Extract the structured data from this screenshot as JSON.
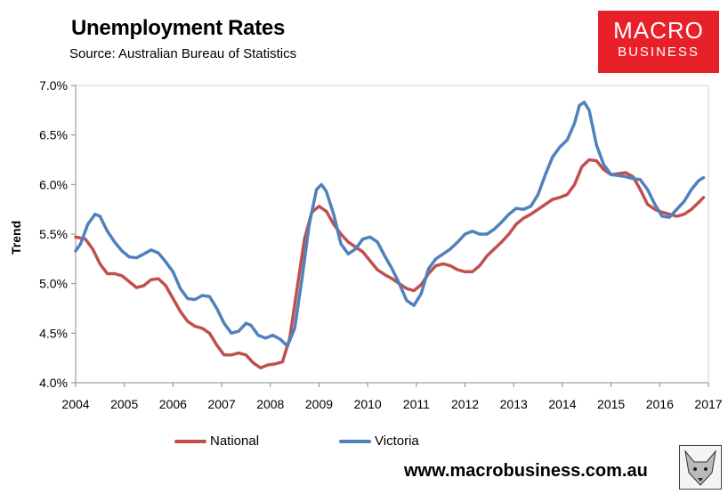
{
  "header": {
    "title": "Unemployment Rates",
    "subtitle": "Source: Australian Bureau of Statistics"
  },
  "logo": {
    "top": "MACRO",
    "bottom": "BUSINESS"
  },
  "footer": {
    "website": "www.macrobusiness.com.au"
  },
  "colors": {
    "national": "#c0504d",
    "victoria": "#4f81bd",
    "logo_bg": "#e8202a"
  },
  "chart_data": {
    "type": "line",
    "title": "Unemployment Rates",
    "ylabel": "Trend",
    "xlabel": "",
    "xlim": [
      2004,
      2017
    ],
    "ylim": [
      4.0,
      7.0
    ],
    "x_ticks": [
      "2004",
      "2005",
      "2006",
      "2007",
      "2008",
      "2009",
      "2010",
      "2011",
      "2012",
      "2013",
      "2014",
      "2015",
      "2016",
      "2017"
    ],
    "y_ticks": [
      "4.0%",
      "4.5%",
      "5.0%",
      "5.5%",
      "6.0%",
      "6.5%",
      "7.0%"
    ],
    "legend_position": "bottom",
    "series": [
      {
        "name": "National",
        "color": "#c0504d",
        "points": [
          [
            2004.0,
            5.47
          ],
          [
            2004.2,
            5.45
          ],
          [
            2004.35,
            5.35
          ],
          [
            2004.5,
            5.2
          ],
          [
            2004.65,
            5.1
          ],
          [
            2004.8,
            5.1
          ],
          [
            2004.95,
            5.08
          ],
          [
            2005.1,
            5.02
          ],
          [
            2005.25,
            4.96
          ],
          [
            2005.4,
            4.98
          ],
          [
            2005.55,
            5.04
          ],
          [
            2005.7,
            5.05
          ],
          [
            2005.85,
            4.98
          ],
          [
            2006.0,
            4.85
          ],
          [
            2006.15,
            4.72
          ],
          [
            2006.3,
            4.62
          ],
          [
            2006.45,
            4.57
          ],
          [
            2006.6,
            4.55
          ],
          [
            2006.75,
            4.5
          ],
          [
            2006.9,
            4.38
          ],
          [
            2007.05,
            4.28
          ],
          [
            2007.2,
            4.28
          ],
          [
            2007.35,
            4.3
          ],
          [
            2007.5,
            4.28
          ],
          [
            2007.65,
            4.2
          ],
          [
            2007.8,
            4.15
          ],
          [
            2007.95,
            4.18
          ],
          [
            2008.1,
            4.19
          ],
          [
            2008.25,
            4.21
          ],
          [
            2008.4,
            4.45
          ],
          [
            2008.55,
            4.95
          ],
          [
            2008.7,
            5.45
          ],
          [
            2008.85,
            5.72
          ],
          [
            2009.0,
            5.78
          ],
          [
            2009.15,
            5.73
          ],
          [
            2009.3,
            5.6
          ],
          [
            2009.45,
            5.5
          ],
          [
            2009.6,
            5.42
          ],
          [
            2009.75,
            5.37
          ],
          [
            2009.9,
            5.32
          ],
          [
            2010.05,
            5.23
          ],
          [
            2010.2,
            5.14
          ],
          [
            2010.35,
            5.09
          ],
          [
            2010.5,
            5.05
          ],
          [
            2010.65,
            5.0
          ],
          [
            2010.8,
            4.95
          ],
          [
            2010.95,
            4.93
          ],
          [
            2011.1,
            4.99
          ],
          [
            2011.25,
            5.1
          ],
          [
            2011.4,
            5.18
          ],
          [
            2011.55,
            5.2
          ],
          [
            2011.7,
            5.18
          ],
          [
            2011.85,
            5.14
          ],
          [
            2012.0,
            5.12
          ],
          [
            2012.15,
            5.12
          ],
          [
            2012.3,
            5.18
          ],
          [
            2012.45,
            5.28
          ],
          [
            2012.6,
            5.35
          ],
          [
            2012.75,
            5.42
          ],
          [
            2012.9,
            5.5
          ],
          [
            2013.05,
            5.6
          ],
          [
            2013.2,
            5.66
          ],
          [
            2013.35,
            5.7
          ],
          [
            2013.5,
            5.75
          ],
          [
            2013.65,
            5.8
          ],
          [
            2013.8,
            5.85
          ],
          [
            2013.95,
            5.87
          ],
          [
            2014.1,
            5.9
          ],
          [
            2014.25,
            6.0
          ],
          [
            2014.4,
            6.18
          ],
          [
            2014.55,
            6.25
          ],
          [
            2014.7,
            6.24
          ],
          [
            2014.85,
            6.15
          ],
          [
            2015.0,
            6.1
          ],
          [
            2015.15,
            6.11
          ],
          [
            2015.3,
            6.12
          ],
          [
            2015.45,
            6.08
          ],
          [
            2015.6,
            5.95
          ],
          [
            2015.75,
            5.8
          ],
          [
            2015.9,
            5.75
          ],
          [
            2016.05,
            5.72
          ],
          [
            2016.2,
            5.7
          ],
          [
            2016.35,
            5.68
          ],
          [
            2016.5,
            5.7
          ],
          [
            2016.65,
            5.75
          ],
          [
            2016.8,
            5.82
          ],
          [
            2016.9,
            5.87
          ]
        ]
      },
      {
        "name": "Victoria",
        "color": "#4f81bd",
        "points": [
          [
            2004.0,
            5.33
          ],
          [
            2004.1,
            5.4
          ],
          [
            2004.25,
            5.6
          ],
          [
            2004.4,
            5.7
          ],
          [
            2004.5,
            5.68
          ],
          [
            2004.65,
            5.53
          ],
          [
            2004.8,
            5.42
          ],
          [
            2004.95,
            5.33
          ],
          [
            2005.1,
            5.27
          ],
          [
            2005.25,
            5.26
          ],
          [
            2005.4,
            5.3
          ],
          [
            2005.55,
            5.34
          ],
          [
            2005.7,
            5.31
          ],
          [
            2005.85,
            5.22
          ],
          [
            2006.0,
            5.12
          ],
          [
            2006.15,
            4.95
          ],
          [
            2006.3,
            4.85
          ],
          [
            2006.45,
            4.84
          ],
          [
            2006.6,
            4.88
          ],
          [
            2006.75,
            4.87
          ],
          [
            2006.9,
            4.75
          ],
          [
            2007.05,
            4.6
          ],
          [
            2007.2,
            4.5
          ],
          [
            2007.35,
            4.52
          ],
          [
            2007.5,
            4.6
          ],
          [
            2007.6,
            4.58
          ],
          [
            2007.75,
            4.48
          ],
          [
            2007.9,
            4.45
          ],
          [
            2008.05,
            4.48
          ],
          [
            2008.2,
            4.44
          ],
          [
            2008.35,
            4.37
          ],
          [
            2008.5,
            4.55
          ],
          [
            2008.65,
            5.05
          ],
          [
            2008.8,
            5.6
          ],
          [
            2008.95,
            5.95
          ],
          [
            2009.05,
            6.0
          ],
          [
            2009.15,
            5.93
          ],
          [
            2009.3,
            5.7
          ],
          [
            2009.45,
            5.4
          ],
          [
            2009.6,
            5.3
          ],
          [
            2009.75,
            5.35
          ],
          [
            2009.9,
            5.45
          ],
          [
            2010.05,
            5.47
          ],
          [
            2010.2,
            5.42
          ],
          [
            2010.35,
            5.28
          ],
          [
            2010.5,
            5.15
          ],
          [
            2010.65,
            5.0
          ],
          [
            2010.8,
            4.83
          ],
          [
            2010.95,
            4.78
          ],
          [
            2011.1,
            4.9
          ],
          [
            2011.25,
            5.15
          ],
          [
            2011.4,
            5.25
          ],
          [
            2011.55,
            5.3
          ],
          [
            2011.7,
            5.35
          ],
          [
            2011.85,
            5.42
          ],
          [
            2012.0,
            5.5
          ],
          [
            2012.15,
            5.53
          ],
          [
            2012.3,
            5.5
          ],
          [
            2012.45,
            5.5
          ],
          [
            2012.6,
            5.55
          ],
          [
            2012.75,
            5.62
          ],
          [
            2012.9,
            5.7
          ],
          [
            2013.05,
            5.76
          ],
          [
            2013.2,
            5.75
          ],
          [
            2013.35,
            5.78
          ],
          [
            2013.5,
            5.9
          ],
          [
            2013.65,
            6.1
          ],
          [
            2013.8,
            6.28
          ],
          [
            2013.95,
            6.38
          ],
          [
            2014.1,
            6.45
          ],
          [
            2014.25,
            6.62
          ],
          [
            2014.35,
            6.8
          ],
          [
            2014.45,
            6.83
          ],
          [
            2014.55,
            6.75
          ],
          [
            2014.7,
            6.4
          ],
          [
            2014.85,
            6.2
          ],
          [
            2015.0,
            6.1
          ],
          [
            2015.15,
            6.09
          ],
          [
            2015.3,
            6.08
          ],
          [
            2015.45,
            6.06
          ],
          [
            2015.6,
            6.05
          ],
          [
            2015.75,
            5.95
          ],
          [
            2015.9,
            5.8
          ],
          [
            2016.05,
            5.68
          ],
          [
            2016.2,
            5.67
          ],
          [
            2016.35,
            5.75
          ],
          [
            2016.5,
            5.83
          ],
          [
            2016.65,
            5.95
          ],
          [
            2016.8,
            6.04
          ],
          [
            2016.9,
            6.07
          ]
        ]
      }
    ]
  }
}
